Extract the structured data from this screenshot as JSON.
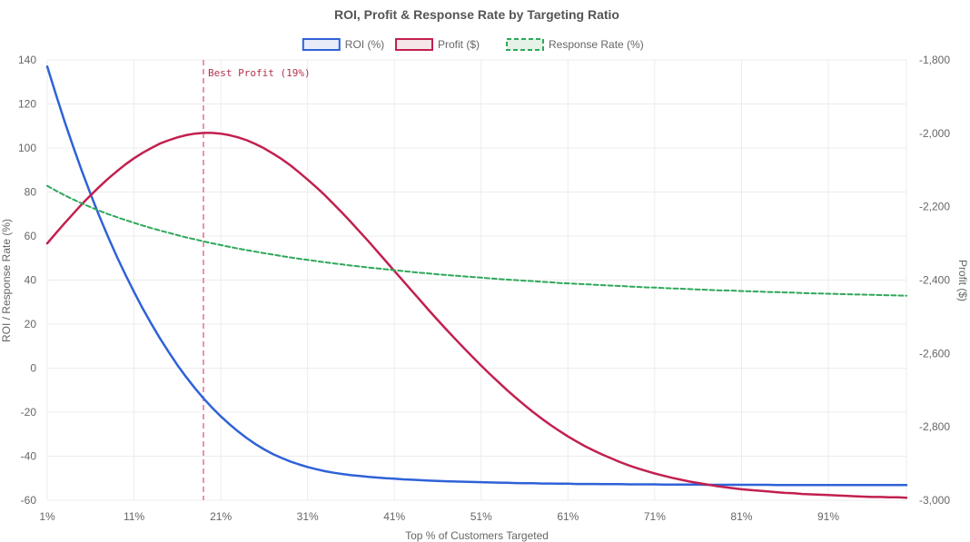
{
  "chart_data": {
    "type": "line",
    "title": "ROI, Profit & Response Rate by Targeting Ratio",
    "xlabel": "Top % of Customers Targeted",
    "ylabel_left": "ROI / Response Rate (%)",
    "ylabel_right": "Profit ($)",
    "x": [
      1,
      2,
      3,
      4,
      5,
      6,
      7,
      8,
      9,
      10,
      11,
      12,
      13,
      14,
      15,
      16,
      17,
      18,
      19,
      20,
      21,
      22,
      23,
      24,
      25,
      26,
      27,
      28,
      29,
      30,
      31,
      32,
      33,
      34,
      35,
      36,
      37,
      38,
      39,
      40,
      41,
      42,
      43,
      44,
      45,
      46,
      47,
      48,
      49,
      50,
      51,
      52,
      53,
      54,
      55,
      56,
      57,
      58,
      59,
      60,
      61,
      62,
      63,
      64,
      65,
      66,
      67,
      68,
      69,
      70,
      71,
      72,
      73,
      74,
      75,
      76,
      77,
      78,
      79,
      80,
      81,
      82,
      83,
      84,
      85,
      86,
      87,
      88,
      89,
      90,
      91,
      92,
      93,
      94,
      95,
      96,
      97,
      98,
      99,
      100
    ],
    "x_ticks": [
      "1%",
      "11%",
      "21%",
      "31%",
      "41%",
      "51%",
      "61%",
      "71%",
      "81%",
      "91%"
    ],
    "x_tick_positions": [
      1,
      11,
      21,
      31,
      41,
      51,
      61,
      71,
      81,
      91
    ],
    "y_left": {
      "min": -60,
      "max": 140,
      "step": 20,
      "ticks": [
        "-60",
        "-40",
        "-20",
        "0",
        "20",
        "40",
        "60",
        "80",
        "100",
        "120",
        "140"
      ]
    },
    "y_right": {
      "min": -3000,
      "max": -1800,
      "step": 200,
      "ticks": [
        "-3,000",
        "-2,800",
        "-2,600",
        "-2,400",
        "-2,200",
        "-2,000",
        "-1,800"
      ]
    },
    "grid": true,
    "legend_position": "top-center",
    "series": [
      {
        "name": "ROI (%)",
        "axis": "left",
        "color": "#2f62d8",
        "fill": "#e7ecf8",
        "dashed": false,
        "values": [
          137.0,
          124.3,
          112.1,
          100.5,
          89.5,
          79.0,
          69.1,
          59.7,
          50.9,
          42.5,
          34.6,
          27.1,
          20.1,
          13.5,
          7.3,
          1.4,
          -4.0,
          -9.0,
          -13.7,
          -18.0,
          -21.9,
          -25.5,
          -28.8,
          -31.8,
          -34.5,
          -36.9,
          -39.0,
          -40.8,
          -42.4,
          -43.7,
          -44.9,
          -45.9,
          -46.8,
          -47.5,
          -48.1,
          -48.6,
          -49.0,
          -49.4,
          -49.7,
          -50.0,
          -50.2,
          -50.5,
          -50.7,
          -50.9,
          -51.1,
          -51.2,
          -51.4,
          -51.5,
          -51.6,
          -51.7,
          -51.8,
          -51.9,
          -52.0,
          -52.1,
          -52.2,
          -52.3,
          -52.3,
          -52.4,
          -52.4,
          -52.5,
          -52.5,
          -52.6,
          -52.6,
          -52.6,
          -52.7,
          -52.7,
          -52.7,
          -52.8,
          -52.8,
          -52.8,
          -52.8,
          -52.9,
          -52.9,
          -52.9,
          -52.9,
          -52.9,
          -53.0,
          -53.0,
          -53.0,
          -53.0,
          -53.0,
          -53.0,
          -53.0,
          -53.0,
          -53.1,
          -53.1,
          -53.1,
          -53.1,
          -53.1,
          -53.1,
          -53.1,
          -53.1,
          -53.1,
          -53.1,
          -53.1,
          -53.1,
          -53.1,
          -53.1,
          -53.1,
          -53.1
        ]
      },
      {
        "name": "Profit ($)",
        "axis": "right",
        "color": "#c2204f",
        "fill": "#f5e6ea",
        "dashed": false,
        "values": [
          -2300,
          -2272,
          -2245,
          -2219,
          -2193,
          -2169,
          -2146,
          -2124,
          -2104,
          -2085,
          -2068,
          -2053,
          -2040,
          -2028,
          -2019,
          -2011,
          -2005,
          -2001,
          -1999,
          -1999,
          -2001,
          -2005,
          -2011,
          -2019,
          -2029,
          -2041,
          -2055,
          -2070,
          -2087,
          -2106,
          -2126,
          -2147,
          -2169,
          -2193,
          -2217,
          -2242,
          -2268,
          -2294,
          -2321,
          -2348,
          -2375,
          -2402,
          -2429,
          -2456,
          -2483,
          -2509,
          -2535,
          -2560,
          -2585,
          -2609,
          -2633,
          -2656,
          -2678,
          -2700,
          -2721,
          -2741,
          -2760,
          -2778,
          -2795,
          -2811,
          -2826,
          -2840,
          -2853,
          -2865,
          -2876,
          -2886,
          -2896,
          -2905,
          -2913,
          -2920,
          -2927,
          -2933,
          -2939,
          -2944,
          -2949,
          -2953,
          -2957,
          -2961,
          -2964,
          -2967,
          -2970,
          -2972,
          -2974,
          -2976,
          -2978,
          -2980,
          -2981,
          -2983,
          -2984,
          -2985,
          -2986,
          -2987,
          -2988,
          -2989,
          -2990,
          -2991,
          -2991,
          -2992,
          -2992,
          -2993
        ]
      },
      {
        "name": "Response Rate (%)",
        "axis": "left",
        "color": "#2fa85a",
        "fill": "#e4f2e8",
        "dashed": true,
        "values": [
          82.8,
          80.6,
          78.5,
          76.6,
          74.8,
          73.1,
          71.5,
          70.0,
          68.6,
          67.3,
          66.0,
          64.8,
          63.6,
          62.5,
          61.5,
          60.4,
          59.4,
          58.5,
          57.6,
          56.7,
          55.9,
          55.1,
          54.3,
          53.6,
          52.9,
          52.2,
          51.6,
          50.9,
          50.3,
          49.7,
          49.2,
          48.6,
          48.1,
          47.6,
          47.1,
          46.6,
          46.2,
          45.7,
          45.3,
          44.9,
          44.5,
          44.1,
          43.7,
          43.3,
          43.0,
          42.6,
          42.3,
          42.0,
          41.7,
          41.4,
          41.1,
          40.8,
          40.5,
          40.2,
          40.0,
          39.7,
          39.5,
          39.2,
          39.0,
          38.7,
          38.5,
          38.3,
          38.1,
          37.9,
          37.7,
          37.5,
          37.3,
          37.1,
          36.9,
          36.7,
          36.6,
          36.4,
          36.2,
          36.1,
          35.9,
          35.7,
          35.6,
          35.4,
          35.3,
          35.2,
          35.0,
          34.9,
          34.8,
          34.6,
          34.5,
          34.4,
          34.3,
          34.1,
          34.0,
          33.9,
          33.8,
          33.7,
          33.6,
          33.5,
          33.4,
          33.3,
          33.2,
          33.1,
          33.0,
          32.9
        ]
      }
    ],
    "annotations": [
      {
        "type": "vertical-line",
        "x": 19,
        "label": "Best Profit (19%)",
        "color": "#e05a78"
      }
    ]
  }
}
